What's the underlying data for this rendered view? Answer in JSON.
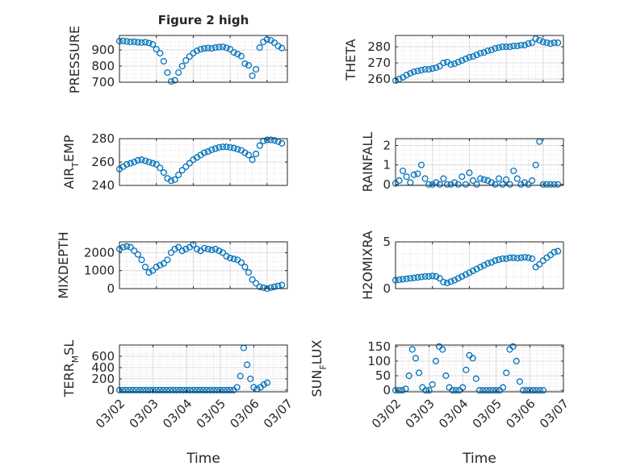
{
  "figure": {
    "title": "Figure 2 high",
    "xlabel": "Time"
  },
  "colors": {
    "marker": "#0072BD",
    "axis": "#262626",
    "grid": "#dcdcdc",
    "background": "#ffffff"
  },
  "chart_data": [
    {
      "type": "scatter",
      "marker": "open-circle",
      "ylabel": "PRESSURE",
      "ylim": [
        700,
        990
      ],
      "yticks": [
        700,
        800,
        900
      ],
      "xlim": [
        0,
        4.55
      ],
      "grid": true,
      "x": [
        0.0,
        0.1,
        0.2,
        0.3,
        0.4,
        0.5,
        0.6,
        0.7,
        0.8,
        0.9,
        1.0,
        1.1,
        1.2,
        1.3,
        1.4,
        1.5,
        1.6,
        1.7,
        1.8,
        1.9,
        2.0,
        2.1,
        2.2,
        2.3,
        2.4,
        2.5,
        2.6,
        2.7,
        2.8,
        2.9,
        3.0,
        3.1,
        3.2,
        3.3,
        3.4,
        3.5,
        3.6,
        3.7,
        3.8,
        3.9,
        4.0,
        4.1,
        4.2,
        4.3,
        4.4
      ],
      "y": [
        955,
        956,
        953,
        950,
        951,
        948,
        946,
        948,
        943,
        935,
        905,
        880,
        830,
        760,
        705,
        712,
        760,
        800,
        835,
        860,
        880,
        895,
        905,
        910,
        912,
        910,
        915,
        918,
        920,
        913,
        905,
        885,
        875,
        862,
        815,
        805,
        740,
        780,
        915,
        950,
        965,
        960,
        945,
        925,
        912
      ]
    },
    {
      "type": "scatter",
      "marker": "open-circle",
      "ylabel": "THETA",
      "ylim": [
        258,
        287
      ],
      "yticks": [
        260,
        270,
        280
      ],
      "xlim": [
        0,
        4.55
      ],
      "grid": true,
      "x": [
        0.0,
        0.1,
        0.2,
        0.3,
        0.4,
        0.5,
        0.6,
        0.7,
        0.8,
        0.9,
        1.0,
        1.1,
        1.2,
        1.3,
        1.4,
        1.5,
        1.6,
        1.7,
        1.8,
        1.9,
        2.0,
        2.1,
        2.2,
        2.3,
        2.4,
        2.5,
        2.6,
        2.7,
        2.8,
        2.9,
        3.0,
        3.1,
        3.2,
        3.3,
        3.4,
        3.5,
        3.6,
        3.7,
        3.8,
        3.9,
        4.0,
        4.1,
        4.2,
        4.3,
        4.4
      ],
      "y": [
        259,
        260,
        261,
        262.5,
        263.5,
        264.5,
        265,
        265.5,
        266,
        266,
        266.5,
        267,
        268,
        270,
        270.5,
        269,
        269.5,
        270.5,
        271.5,
        272.5,
        273.5,
        274,
        275,
        276,
        276.5,
        277.5,
        278,
        279,
        279.5,
        280,
        280,
        280,
        280.5,
        280.5,
        281,
        281,
        282,
        282.5,
        285,
        284,
        283,
        282.5,
        282,
        282.5,
        282.5
      ]
    },
    {
      "type": "scatter",
      "marker": "open-circle",
      "ylabel": "AIR_TEMP",
      "ylim": [
        240,
        280
      ],
      "yticks": [
        240,
        260,
        280
      ],
      "xlim": [
        0,
        4.55
      ],
      "grid": true,
      "x": [
        0.0,
        0.1,
        0.2,
        0.3,
        0.4,
        0.5,
        0.6,
        0.7,
        0.8,
        0.9,
        1.0,
        1.1,
        1.2,
        1.3,
        1.4,
        1.5,
        1.6,
        1.7,
        1.8,
        1.9,
        2.0,
        2.1,
        2.2,
        2.3,
        2.4,
        2.5,
        2.6,
        2.7,
        2.8,
        2.9,
        3.0,
        3.1,
        3.2,
        3.3,
        3.4,
        3.5,
        3.6,
        3.7,
        3.8,
        3.9,
        4.0,
        4.1,
        4.2,
        4.3,
        4.4
      ],
      "y": [
        254,
        256,
        258,
        259,
        260,
        261.5,
        262,
        261,
        260,
        259,
        258,
        255,
        251,
        246,
        244,
        245,
        249,
        253,
        256,
        259,
        262,
        264,
        266,
        268,
        269,
        270.5,
        271.5,
        272.5,
        273,
        273,
        272.5,
        272,
        271,
        270,
        268,
        266,
        262,
        267,
        274,
        278,
        279,
        279,
        278.5,
        277.5,
        276
      ]
    },
    {
      "type": "scatter",
      "marker": "open-circle",
      "ylabel": "RAINFALL",
      "ylim": [
        -0.05,
        2.35
      ],
      "yticks": [
        0,
        1,
        2
      ],
      "xlim": [
        0,
        4.55
      ],
      "grid": true,
      "x": [
        0.0,
        0.1,
        0.2,
        0.3,
        0.4,
        0.5,
        0.6,
        0.7,
        0.8,
        0.9,
        1.0,
        1.1,
        1.2,
        1.3,
        1.4,
        1.5,
        1.6,
        1.7,
        1.8,
        1.9,
        2.0,
        2.1,
        2.2,
        2.3,
        2.4,
        2.5,
        2.6,
        2.7,
        2.8,
        2.9,
        3.0,
        3.1,
        3.2,
        3.3,
        3.4,
        3.5,
        3.6,
        3.7,
        3.8,
        3.9,
        4.0,
        4.1,
        4.2,
        4.3,
        4.4
      ],
      "y": [
        0.05,
        0.2,
        0.7,
        0.4,
        0.1,
        0.5,
        0.55,
        1.0,
        0.3,
        0.0,
        0.0,
        0.1,
        0.0,
        0.3,
        0.0,
        0.0,
        0.1,
        0.0,
        0.4,
        0.0,
        0.6,
        0.2,
        0.0,
        0.3,
        0.25,
        0.2,
        0.1,
        0.0,
        0.3,
        0.0,
        0.25,
        0.0,
        0.7,
        0.3,
        0.0,
        0.1,
        0.0,
        0.2,
        1.0,
        2.2,
        0.0,
        0.0,
        0.0,
        0.0,
        0.0
      ]
    },
    {
      "type": "scatter",
      "marker": "open-circle",
      "ylabel": "MIXDEPTH",
      "ylim": [
        0,
        2600
      ],
      "yticks": [
        0,
        1000,
        2000
      ],
      "xlim": [
        0,
        4.55
      ],
      "grid": true,
      "x": [
        0.0,
        0.1,
        0.2,
        0.3,
        0.4,
        0.5,
        0.6,
        0.7,
        0.8,
        0.9,
        1.0,
        1.1,
        1.2,
        1.3,
        1.4,
        1.5,
        1.6,
        1.7,
        1.8,
        1.9,
        2.0,
        2.1,
        2.2,
        2.3,
        2.4,
        2.5,
        2.6,
        2.7,
        2.8,
        2.9,
        3.0,
        3.1,
        3.2,
        3.3,
        3.4,
        3.5,
        3.6,
        3.7,
        3.8,
        3.9,
        4.0,
        4.1,
        4.2,
        4.3,
        4.4
      ],
      "y": [
        2200,
        2300,
        2350,
        2300,
        2100,
        1900,
        1600,
        1200,
        900,
        1000,
        1200,
        1300,
        1400,
        1600,
        2000,
        2200,
        2300,
        2100,
        2200,
        2300,
        2450,
        2200,
        2100,
        2250,
        2200,
        2150,
        2200,
        2100,
        2000,
        1800,
        1700,
        1650,
        1600,
        1450,
        1200,
        900,
        500,
        300,
        100,
        50,
        0,
        50,
        100,
        150,
        200
      ]
    },
    {
      "type": "scatter",
      "marker": "open-circle",
      "ylabel": "H2OMIXRA",
      "ylim": [
        0,
        5
      ],
      "yticks": [
        0,
        5
      ],
      "xlim": [
        0,
        4.55
      ],
      "grid": true,
      "x": [
        0.0,
        0.1,
        0.2,
        0.3,
        0.4,
        0.5,
        0.6,
        0.7,
        0.8,
        0.9,
        1.0,
        1.1,
        1.2,
        1.3,
        1.4,
        1.5,
        1.6,
        1.7,
        1.8,
        1.9,
        2.0,
        2.1,
        2.2,
        2.3,
        2.4,
        2.5,
        2.6,
        2.7,
        2.8,
        2.9,
        3.0,
        3.1,
        3.2,
        3.3,
        3.4,
        3.5,
        3.6,
        3.7,
        3.8,
        3.9,
        4.0,
        4.1,
        4.2,
        4.3,
        4.4
      ],
      "y": [
        0.9,
        0.95,
        1.0,
        1.05,
        1.1,
        1.15,
        1.2,
        1.25,
        1.3,
        1.3,
        1.35,
        1.3,
        1.1,
        0.7,
        0.6,
        0.75,
        0.9,
        1.1,
        1.3,
        1.5,
        1.7,
        1.9,
        2.1,
        2.3,
        2.5,
        2.7,
        2.8,
        3.0,
        3.1,
        3.2,
        3.2,
        3.3,
        3.3,
        3.25,
        3.3,
        3.35,
        3.3,
        3.2,
        2.3,
        2.6,
        3.0,
        3.3,
        3.6,
        3.9,
        4.0
      ]
    },
    {
      "type": "scatter",
      "marker": "open-circle",
      "ylabel": "TERR_MSL",
      "ylim": [
        -30,
        800
      ],
      "yticks": [
        0,
        200,
        400,
        600
      ],
      "xlim": [
        0,
        5
      ],
      "grid": true,
      "x": [
        0.0,
        0.1,
        0.2,
        0.3,
        0.4,
        0.5,
        0.6,
        0.7,
        0.8,
        0.9,
        1.0,
        1.1,
        1.2,
        1.3,
        1.4,
        1.5,
        1.6,
        1.7,
        1.8,
        1.9,
        2.0,
        2.1,
        2.2,
        2.3,
        2.4,
        2.5,
        2.6,
        2.7,
        2.8,
        2.9,
        3.0,
        3.1,
        3.2,
        3.3,
        3.4,
        3.5,
        3.6,
        3.7,
        3.8,
        3.9,
        4.0,
        4.1,
        4.2,
        4.3,
        4.4
      ],
      "y": [
        0,
        0,
        0,
        0,
        0,
        0,
        0,
        0,
        0,
        0,
        0,
        0,
        0,
        0,
        0,
        0,
        0,
        0,
        0,
        0,
        0,
        0,
        0,
        0,
        0,
        0,
        0,
        0,
        0,
        0,
        0,
        0,
        0,
        0,
        0,
        50,
        250,
        750,
        450,
        200,
        50,
        20,
        50,
        100,
        130
      ]
    },
    {
      "type": "scatter",
      "marker": "open-circle",
      "ylabel": "SUN_FLUX",
      "ylim": [
        -5,
        155
      ],
      "yticks": [
        0,
        50,
        100,
        150
      ],
      "xlim": [
        0,
        5
      ],
      "grid": true,
      "x": [
        0.0,
        0.1,
        0.2,
        0.3,
        0.4,
        0.5,
        0.6,
        0.7,
        0.8,
        0.9,
        1.0,
        1.1,
        1.2,
        1.3,
        1.4,
        1.5,
        1.6,
        1.7,
        1.8,
        1.9,
        2.0,
        2.1,
        2.2,
        2.3,
        2.4,
        2.5,
        2.6,
        2.7,
        2.8,
        2.9,
        3.0,
        3.1,
        3.2,
        3.3,
        3.4,
        3.5,
        3.6,
        3.7,
        3.8,
        3.9,
        4.0,
        4.1,
        4.2,
        4.3,
        4.4
      ],
      "y": [
        0,
        0,
        0,
        5,
        50,
        140,
        110,
        60,
        10,
        0,
        0,
        20,
        100,
        150,
        140,
        50,
        10,
        0,
        0,
        0,
        10,
        70,
        120,
        110,
        40,
        0,
        0,
        0,
        0,
        0,
        0,
        0,
        10,
        60,
        140,
        150,
        100,
        30,
        0,
        0,
        0,
        0,
        0,
        0,
        0
      ]
    }
  ],
  "axes": [
    {
      "ylabel_base": "PRESSURE",
      "ylabel_sub": "",
      "ylabel_tail": ""
    },
    {
      "ylabel_base": "THETA",
      "ylabel_sub": "",
      "ylabel_tail": ""
    },
    {
      "ylabel_base": "AIR",
      "ylabel_sub": "T",
      "ylabel_tail": "EMP"
    },
    {
      "ylabel_base": "RAINFALL",
      "ylabel_sub": "",
      "ylabel_tail": ""
    },
    {
      "ylabel_base": "MIXDEPTH",
      "ylabel_sub": "",
      "ylabel_tail": ""
    },
    {
      "ylabel_base": "H2OMIXRA",
      "ylabel_sub": "",
      "ylabel_tail": ""
    },
    {
      "ylabel_base": "TERR",
      "ylabel_sub": "M",
      "ylabel_tail": "SL"
    },
    {
      "ylabel_base": "SUN",
      "ylabel_sub": "F",
      "ylabel_tail": "LUX"
    }
  ],
  "xticks": [
    "03/02",
    "03/03",
    "03/04",
    "03/05",
    "03/06",
    "03/07"
  ]
}
